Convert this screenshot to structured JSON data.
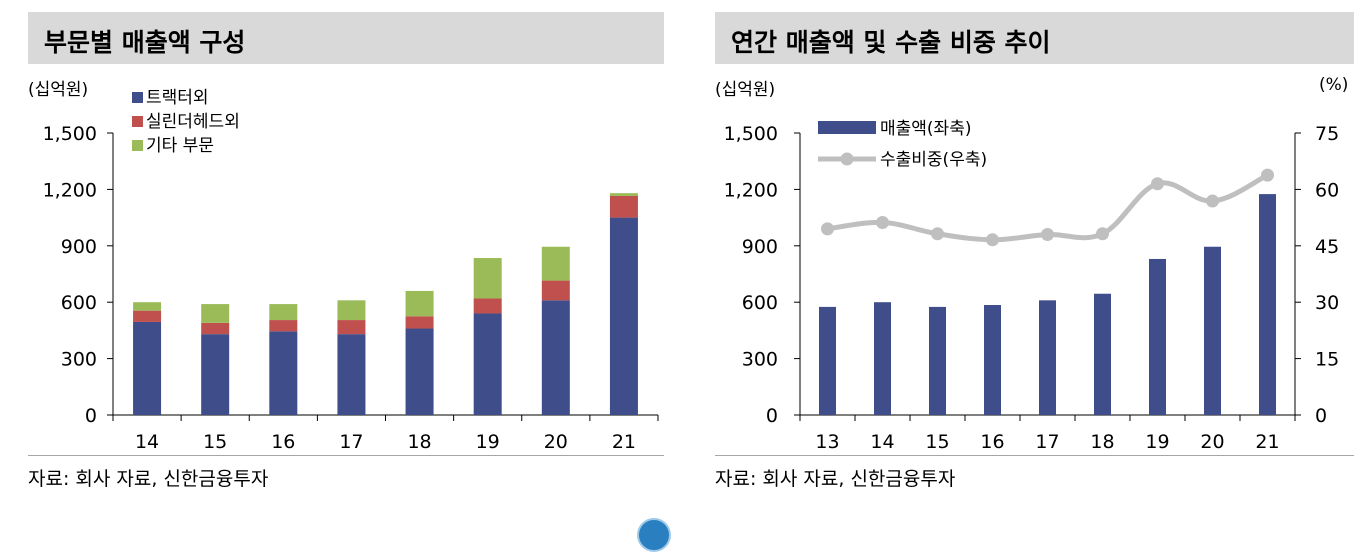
{
  "left_panel": {
    "title": "부문별 매출액 구성",
    "unit": "(십억원)",
    "source": "자료: 회사 자료, 신한금융투자"
  },
  "right_panel": {
    "title": "연간 매출액 및 수출 비중 추이",
    "unit_left": "(십억원)",
    "unit_right": "(%)",
    "source": "자료: 회사 자료, 신한금융투자"
  },
  "colors": {
    "navy": "#3f4d8b",
    "red": "#c0504d",
    "green": "#9bbb59",
    "line_gray": "#bfbfbf"
  },
  "chart_data": [
    {
      "type": "bar",
      "stacked": true,
      "title": "부문별 매출액 구성",
      "categories": [
        "14",
        "15",
        "16",
        "17",
        "18",
        "19",
        "20",
        "21"
      ],
      "series": [
        {
          "name": "트랙터외",
          "values": [
            495,
            430,
            445,
            430,
            460,
            540,
            610,
            1050
          ]
        },
        {
          "name": "실린더헤드외",
          "values": [
            60,
            60,
            60,
            75,
            65,
            80,
            105,
            115
          ]
        },
        {
          "name": "기타 부문",
          "values": [
            45,
            100,
            85,
            105,
            135,
            215,
            180,
            15
          ]
        }
      ],
      "ylim": [
        0,
        1500
      ],
      "yticks": [
        "0",
        "300",
        "600",
        "900",
        "1,200",
        "1,500"
      ],
      "legend": "top-left"
    },
    {
      "type": "bar",
      "title": "연간 매출액 및 수출 비중 추이",
      "categories": [
        "13",
        "14",
        "15",
        "16",
        "17",
        "18",
        "19",
        "20",
        "21"
      ],
      "series": [
        {
          "name": "매출액(좌축)",
          "axis": "left",
          "type": "bar",
          "values": [
            575,
            600,
            575,
            585,
            610,
            645,
            830,
            895,
            1175
          ]
        },
        {
          "name": "수출비중(우축)",
          "axis": "right",
          "type": "line",
          "values": [
            49.5,
            51.2,
            48.2,
            46.6,
            48.0,
            48.2,
            61.5,
            56.9,
            63.8
          ]
        }
      ],
      "ylim_left": [
        0,
        1500
      ],
      "ylim_right": [
        0,
        75
      ],
      "yticks_left": [
        "0",
        "300",
        "600",
        "900",
        "1,200",
        "1,500"
      ],
      "yticks_right": [
        "0",
        "15",
        "30",
        "45",
        "60",
        "75"
      ],
      "legend": "top-left"
    }
  ]
}
